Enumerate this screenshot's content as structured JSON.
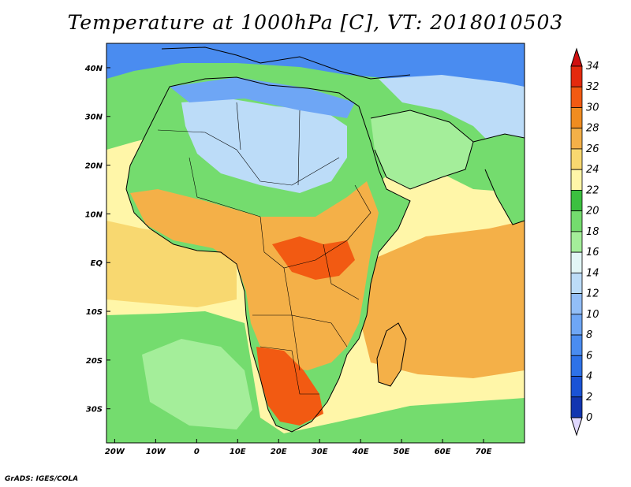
{
  "title": "Temperature at 1000hPa [C], VT: 2018010503",
  "credit": "GrADS: IGES/COLA",
  "axes": {
    "lon_ticks": [
      {
        "lon": -20,
        "label": "20W"
      },
      {
        "lon": -10,
        "label": "10W"
      },
      {
        "lon": 0,
        "label": "0"
      },
      {
        "lon": 10,
        "label": "10E"
      },
      {
        "lon": 20,
        "label": "20E"
      },
      {
        "lon": 30,
        "label": "30E"
      },
      {
        "lon": 40,
        "label": "40E"
      },
      {
        "lon": 50,
        "label": "50E"
      },
      {
        "lon": 60,
        "label": "60E"
      },
      {
        "lon": 70,
        "label": "70E"
      }
    ],
    "lat_ticks": [
      {
        "lat": 40,
        "label": "40N"
      },
      {
        "lat": 30,
        "label": "30N"
      },
      {
        "lat": 20,
        "label": "20N"
      },
      {
        "lat": 10,
        "label": "10N"
      },
      {
        "lat": 0,
        "label": "EQ"
      },
      {
        "lat": -10,
        "label": "10S"
      },
      {
        "lat": -20,
        "label": "20S"
      },
      {
        "lat": -30,
        "label": "30S"
      }
    ],
    "lon_range": [
      -22,
      80
    ],
    "lat_range": [
      -37,
      45
    ]
  },
  "colorbar": {
    "levels": [
      0,
      2,
      4,
      6,
      8,
      10,
      12,
      14,
      16,
      18,
      20,
      22,
      24,
      26,
      28,
      30,
      32,
      34
    ],
    "labels": [
      "0",
      "2",
      "4",
      "6",
      "8",
      "10",
      "12",
      "14",
      "16",
      "18",
      "20",
      "22",
      "24",
      "26",
      "28",
      "30",
      "32",
      "34"
    ],
    "colors": [
      "#0a1d7a",
      "#1235b0",
      "#1a53d6",
      "#2e72e8",
      "#4a8cf0",
      "#6ea6f5",
      "#92bef7",
      "#bcdcf8",
      "#e2f6f6",
      "#a4ee9a",
      "#74dc6e",
      "#3cc040",
      "#fff6a8",
      "#f8d870",
      "#f4b048",
      "#f08c20",
      "#f25a12",
      "#e42a0e"
    ],
    "under_color": "#e0d8ff",
    "over_color": "#d01010"
  },
  "map_colors": {
    "ocean_warm": "#f4b048",
    "ocean_mid": "#f8d870",
    "ocean_cool": "#fff6a8",
    "ocean_green": "#74dc6e",
    "ocean_light": "#a4ee9a",
    "land_green": "#74dc6e",
    "land_light": "#a4ee9a",
    "land_cool": "#bcdcf8",
    "land_blue": "#6ea6f5",
    "land_warm": "#f4b048",
    "land_hot": "#f25a12",
    "north_blue": "#4a8cf0"
  }
}
